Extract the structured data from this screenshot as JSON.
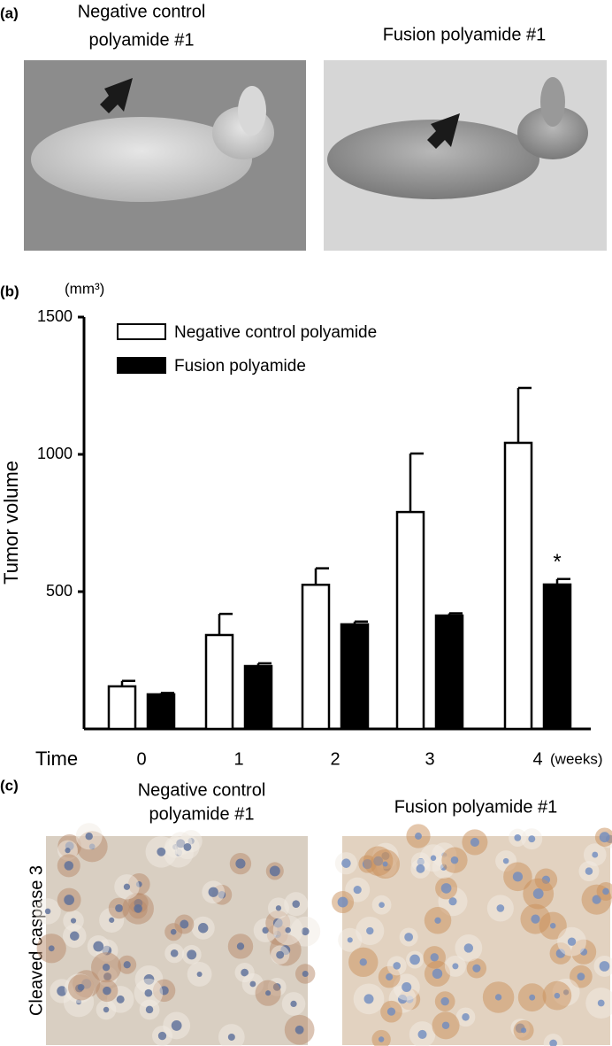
{
  "panel_a": {
    "label": "(a)",
    "left_caption": [
      "Negative control",
      "polyamide #1"
    ],
    "right_caption": [
      "Fusion polyamide #1"
    ]
  },
  "chart_data": {
    "type": "bar",
    "panel_label": "(b)",
    "y_unit": "(mm³)",
    "y_label": "Tumor volume",
    "x_label": "Time",
    "x_unit": "(weeks)",
    "categories": [
      "0",
      "1",
      "2",
      "3",
      "4"
    ],
    "series": [
      {
        "name": "Negative control polyamide",
        "color": "#ffffff",
        "values": [
          155,
          342,
          525,
          790,
          1042
        ],
        "errors": [
          20,
          77,
          60,
          213,
          200
        ]
      },
      {
        "name": "Fusion polyamide",
        "color": "#000000",
        "values": [
          126,
          229,
          381,
          413,
          526
        ],
        "errors": [
          5,
          10,
          10,
          8,
          20
        ]
      }
    ],
    "annotations": [
      {
        "text": "*",
        "category": 4,
        "series": 1
      }
    ],
    "ylim": [
      0,
      1500
    ],
    "yticks": [
      500,
      1000,
      1500
    ],
    "grid": false,
    "legend": "top-left"
  },
  "panel_c": {
    "label": "(c)",
    "y_label": "Cleaved caspase 3",
    "left_caption": [
      "Negative control",
      "polyamide #1"
    ],
    "right_caption": [
      "Fusion polyamide #1"
    ]
  }
}
